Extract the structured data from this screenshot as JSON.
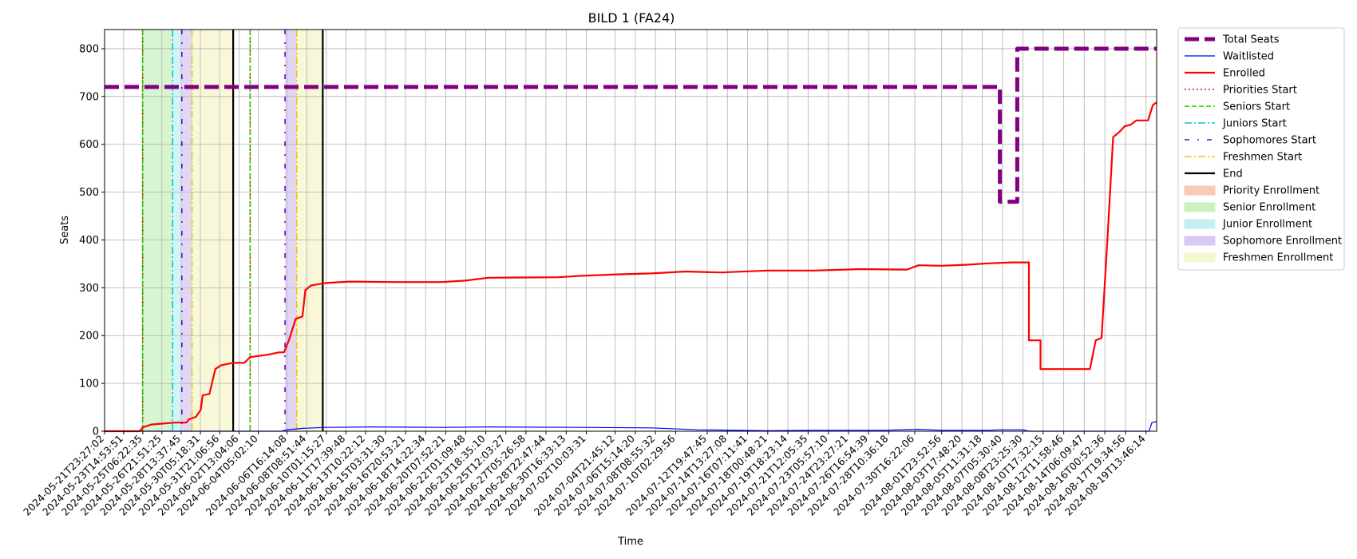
{
  "chart_data": {
    "type": "line",
    "title": "BILD 1 (FA24)",
    "xlabel": "Time",
    "ylabel": "Seats",
    "ylim": [
      0,
      840
    ],
    "yticks": [
      0,
      100,
      200,
      300,
      400,
      500,
      600,
      700,
      800
    ],
    "grid": true,
    "legend_placement": "outside-upper-right",
    "x_range": [
      "2024-05-21T23:27:02",
      "2024-08-20T11:45:00"
    ],
    "xticks": [
      "2024-05-21T23:27:02",
      "2024-05-23T14:53:51",
      "2024-05-25T06:22:35",
      "2024-05-26T21:51:25",
      "2024-05-28T13:37:45",
      "2024-05-30T05:18:31",
      "2024-05-31T21:06:56",
      "2024-06-02T13:04:06",
      "2024-06-04T05:02:10",
      "2024-06-06T16:14:08",
      "2024-06-08T08:51:44",
      "2024-06-10T01:15:27",
      "2024-06-11T17:39:48",
      "2024-06-13T10:22:12",
      "2024-06-15T03:31:30",
      "2024-06-16T20:53:21",
      "2024-06-18T14:22:34",
      "2024-06-20T07:52:21",
      "2024-06-22T01:09:48",
      "2024-06-23T18:35:10",
      "2024-06-25T12:03:27",
      "2024-06-27T05:26:58",
      "2024-06-28T22:47:44",
      "2024-06-30T16:33:13",
      "2024-07-02T10:03:31",
      "2024-07-04T21:45:12",
      "2024-07-06T15:14:20",
      "2024-07-08T08:55:32",
      "2024-07-10T02:29:56",
      "2024-07-12T19:47:45",
      "2024-07-14T13:27:08",
      "2024-07-16T07:11:41",
      "2024-07-18T00:48:21",
      "2024-07-19T18:23:14",
      "2024-07-21T12:05:35",
      "2024-07-23T05:57:10",
      "2024-07-24T23:27:21",
      "2024-07-26T16:54:39",
      "2024-07-28T10:36:18",
      "2024-07-30T16:22:06",
      "2024-08-01T23:52:56",
      "2024-08-03T17:48:20",
      "2024-08-05T11:31:18",
      "2024-08-07T05:30:40",
      "2024-08-08T23:25:30",
      "2024-08-10T17:32:15",
      "2024-08-12T11:58:46",
      "2024-08-14T06:09:47",
      "2024-08-16T00:52:36",
      "2024-08-17T19:34:56",
      "2024-08-19T13:46:14"
    ],
    "series": [
      {
        "name": "Total Seats",
        "color": "#800080",
        "style": "dashed-thick",
        "points": [
          [
            "2024-05-21T23:27:02",
            720
          ],
          [
            "2024-08-07T00:00:00",
            720
          ],
          [
            "2024-08-07T00:00:00",
            480
          ],
          [
            "2024-08-08T12:00:00",
            480
          ],
          [
            "2024-08-08T12:00:00",
            800
          ],
          [
            "2024-08-20T11:45:00",
            800
          ]
        ]
      },
      {
        "name": "Waitlisted",
        "color": "#0000ff",
        "style": "solid-thin",
        "points": [
          [
            "2024-05-21T23:27:02",
            0
          ],
          [
            "2024-06-06T04:00:00",
            0
          ],
          [
            "2024-06-06T16:00:00",
            3
          ],
          [
            "2024-06-08T00:00:00",
            6
          ],
          [
            "2024-06-10T00:00:00",
            8
          ],
          [
            "2024-06-14T00:00:00",
            9
          ],
          [
            "2024-06-20T00:00:00",
            8
          ],
          [
            "2024-06-24T00:00:00",
            9
          ],
          [
            "2024-07-02T00:00:00",
            8
          ],
          [
            "2024-07-08T00:00:00",
            7
          ],
          [
            "2024-07-12T00:00:00",
            3
          ],
          [
            "2024-07-18T00:00:00",
            1
          ],
          [
            "2024-07-22T00:00:00",
            2
          ],
          [
            "2024-07-28T00:00:00",
            2
          ],
          [
            "2024-07-31T00:00:00",
            4
          ],
          [
            "2024-08-02T00:00:00",
            2
          ],
          [
            "2024-08-06T00:00:00",
            2
          ],
          [
            "2024-08-07T00:00:00",
            3
          ],
          [
            "2024-08-09T00:00:00",
            3
          ],
          [
            "2024-08-09T12:00:00",
            0
          ],
          [
            "2024-08-19T20:00:00",
            0
          ],
          [
            "2024-08-20T02:00:00",
            18
          ],
          [
            "2024-08-20T11:45:00",
            20
          ]
        ]
      },
      {
        "name": "Enrolled",
        "color": "#ff0000",
        "style": "solid",
        "points": [
          [
            "2024-05-21T23:27:02",
            0
          ],
          [
            "2024-05-25T00:00:00",
            0
          ],
          [
            "2024-05-25T06:00:00",
            8
          ],
          [
            "2024-05-26T00:00:00",
            14
          ],
          [
            "2024-05-27T00:00:00",
            16
          ],
          [
            "2024-05-28T00:00:00",
            18
          ],
          [
            "2024-05-29T00:00:00",
            18
          ],
          [
            "2024-05-29T06:00:00",
            25
          ],
          [
            "2024-05-29T20:00:00",
            30
          ],
          [
            "2024-05-30T06:00:00",
            45
          ],
          [
            "2024-05-30T10:00:00",
            75
          ],
          [
            "2024-05-31T00:00:00",
            78
          ],
          [
            "2024-05-31T12:00:00",
            130
          ],
          [
            "2024-06-01T00:00:00",
            138
          ],
          [
            "2024-06-02T00:00:00",
            143
          ],
          [
            "2024-06-03T00:00:00",
            143
          ],
          [
            "2024-06-03T12:00:00",
            155
          ],
          [
            "2024-06-05T00:00:00",
            160
          ],
          [
            "2024-06-06T00:00:00",
            165
          ],
          [
            "2024-06-06T10:00:00",
            165
          ],
          [
            "2024-06-06T20:00:00",
            190
          ],
          [
            "2024-06-07T10:00:00",
            235
          ],
          [
            "2024-06-08T00:00:00",
            240
          ],
          [
            "2024-06-08T06:00:00",
            295
          ],
          [
            "2024-06-08T18:00:00",
            305
          ],
          [
            "2024-06-10T00:00:00",
            310
          ],
          [
            "2024-06-12T00:00:00",
            313
          ],
          [
            "2024-06-16T00:00:00",
            312
          ],
          [
            "2024-06-20T00:00:00",
            312
          ],
          [
            "2024-06-22T00:00:00",
            315
          ],
          [
            "2024-06-24T00:00:00",
            321
          ],
          [
            "2024-06-30T00:00:00",
            322
          ],
          [
            "2024-07-02T00:00:00",
            325
          ],
          [
            "2024-07-05T00:00:00",
            328
          ],
          [
            "2024-07-08T00:00:00",
            330
          ],
          [
            "2024-07-11T00:00:00",
            334
          ],
          [
            "2024-07-14T00:00:00",
            332
          ],
          [
            "2024-07-18T00:00:00",
            336
          ],
          [
            "2024-07-22T00:00:00",
            336
          ],
          [
            "2024-07-26T00:00:00",
            339
          ],
          [
            "2024-07-30T00:00:00",
            338
          ],
          [
            "2024-07-31T00:00:00",
            347
          ],
          [
            "2024-08-02T00:00:00",
            346
          ],
          [
            "2024-08-04T00:00:00",
            348
          ],
          [
            "2024-08-06T00:00:00",
            351
          ],
          [
            "2024-08-08T00:00:00",
            353
          ],
          [
            "2024-08-09T12:00:00",
            353
          ],
          [
            "2024-08-09T12:00:00",
            190
          ],
          [
            "2024-08-10T12:00:00",
            190
          ],
          [
            "2024-08-10T12:00:00",
            130
          ],
          [
            "2024-08-14T18:00:00",
            130
          ],
          [
            "2024-08-15T06:00:00",
            190
          ],
          [
            "2024-08-15T18:00:00",
            195
          ],
          [
            "2024-08-16T06:00:00",
            400
          ],
          [
            "2024-08-16T18:00:00",
            615
          ],
          [
            "2024-08-17T06:00:00",
            625
          ],
          [
            "2024-08-17T18:00:00",
            638
          ],
          [
            "2024-08-18T06:00:00",
            641
          ],
          [
            "2024-08-18T18:00:00",
            650
          ],
          [
            "2024-08-19T18:00:00",
            650
          ],
          [
            "2024-08-20T04:00:00",
            682
          ],
          [
            "2024-08-20T11:45:00",
            688
          ]
        ]
      }
    ],
    "vlines": [
      {
        "name": "Priorities Start",
        "color": "#ff0000",
        "style": "dotted",
        "x": [
          "2024-05-25T06:00:00",
          "2024-06-03T12:00:00"
        ]
      },
      {
        "name": "Seniors Start",
        "color": "#22cc00",
        "style": "dashed",
        "x": [
          "2024-05-25T06:00:00",
          "2024-06-03T12:00:00"
        ]
      },
      {
        "name": "Juniors Start",
        "color": "#00cccc",
        "style": "dashdot",
        "x": [
          "2024-05-27T20:00:00"
        ]
      },
      {
        "name": "Sophomores Start",
        "color": "#6600cc",
        "style": "sparsedashdot",
        "x": [
          "2024-05-28T15:00:00",
          "2024-06-06T12:00:00"
        ]
      },
      {
        "name": "Freshmen Start",
        "color": "#e6c800",
        "style": "dashdot",
        "x": [
          "2024-05-29T12:00:00",
          "2024-06-07T12:00:00"
        ]
      },
      {
        "name": "End",
        "color": "#000000",
        "style": "solid",
        "x": [
          "2024-06-02T01:00:00",
          "2024-06-09T18:00:00"
        ]
      }
    ],
    "spans": [
      {
        "name": "Priority Enrollment",
        "color": "#f7c9b8",
        "ranges": []
      },
      {
        "name": "Senior Enrollment",
        "color": "#c8f2c0",
        "ranges": [
          [
            "2024-05-25T06:00:00",
            "2024-05-27T20:00:00"
          ]
        ]
      },
      {
        "name": "Junior Enrollment",
        "color": "#c4f0f4",
        "ranges": [
          [
            "2024-05-27T20:00:00",
            "2024-05-28T15:00:00"
          ]
        ]
      },
      {
        "name": "Sophomore Enrollment",
        "color": "#d9c8f0",
        "ranges": [
          [
            "2024-05-28T15:00:00",
            "2024-05-29T12:00:00"
          ],
          [
            "2024-06-06T12:00:00",
            "2024-06-07T12:00:00"
          ]
        ]
      },
      {
        "name": "Freshmen Enrollment",
        "color": "#f6f6cc",
        "ranges": [
          [
            "2024-05-29T12:00:00",
            "2024-06-02T01:00:00"
          ],
          [
            "2024-06-07T12:00:00",
            "2024-06-09T18:00:00"
          ]
        ]
      }
    ],
    "legend": [
      {
        "label": "Total Seats",
        "kind": "line",
        "color": "#800080",
        "style": "dashed-thick"
      },
      {
        "label": "Waitlisted",
        "kind": "line",
        "color": "#0000ff",
        "style": "solid-thin"
      },
      {
        "label": "Enrolled",
        "kind": "line",
        "color": "#ff0000",
        "style": "solid"
      },
      {
        "label": "Priorities Start",
        "kind": "line",
        "color": "#ff0000",
        "style": "dotted"
      },
      {
        "label": "Seniors Start",
        "kind": "line",
        "color": "#22cc00",
        "style": "dashed"
      },
      {
        "label": "Juniors Start",
        "kind": "line",
        "color": "#00cccc",
        "style": "dashdot"
      },
      {
        "label": "Sophomores Start",
        "kind": "line",
        "color": "#6600cc",
        "style": "sparsedashdot"
      },
      {
        "label": "Freshmen Start",
        "kind": "line",
        "color": "#e6c800",
        "style": "dashdot"
      },
      {
        "label": "End",
        "kind": "line",
        "color": "#000000",
        "style": "solid"
      },
      {
        "label": "Priority Enrollment",
        "kind": "patch",
        "color": "#f7c9b8"
      },
      {
        "label": "Senior Enrollment",
        "kind": "patch",
        "color": "#c8f2c0"
      },
      {
        "label": "Junior Enrollment",
        "kind": "patch",
        "color": "#c4f0f4"
      },
      {
        "label": "Sophomore Enrollment",
        "kind": "patch",
        "color": "#d9c8f0"
      },
      {
        "label": "Freshmen Enrollment",
        "kind": "patch",
        "color": "#f6f6cc"
      }
    ]
  }
}
